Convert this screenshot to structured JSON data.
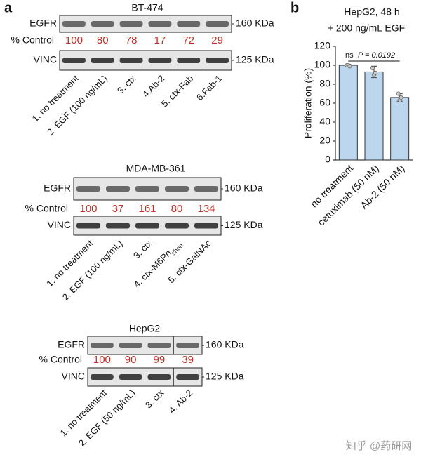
{
  "panel_a": {
    "letter": "a",
    "blots": [
      {
        "title": "BT-474",
        "top_row": "EGFR",
        "pct_row": "% Control",
        "bottom_row": "VINC",
        "markers": [
          "160 KDa",
          "125 KDa"
        ],
        "percent_control": [
          100,
          80,
          78,
          17,
          72,
          29
        ],
        "lanes": [
          "1. no treatment",
          "2. EGF (100 ng/mL)",
          "3. ctx",
          "4.Ab-2",
          "5. ctx-Fab",
          "6.Fab-1"
        ]
      },
      {
        "title": "MDA-MB-361",
        "top_row": "EGFR",
        "pct_row": "% Control",
        "bottom_row": "VINC",
        "markers": [
          "160 KDa",
          "125 KDa"
        ],
        "percent_control": [
          100,
          37,
          161,
          80,
          134
        ],
        "lanes": [
          "1. no treatment",
          "2. EGF (100 ng/mL)",
          "3. ctx",
          {
            "text": "4. ctx-M6Pn",
            "subscript": "short"
          },
          "5. ctx-GalNAc"
        ]
      },
      {
        "title": "HepG2",
        "top_row": "EGFR",
        "pct_row": "% Control",
        "bottom_row": "VINC",
        "markers": [
          "160 KDa",
          "125 KDa"
        ],
        "percent_control": [
          100,
          90,
          99,
          39
        ],
        "lanes": [
          "1. no treatment",
          "2. EGF (50 ng/mL)",
          "3. ctx",
          "4. Ab-2"
        ]
      }
    ]
  },
  "panel_b": {
    "letter": "b"
  },
  "chart_data": {
    "type": "bar",
    "title": [
      "HepG2, 48 h",
      "+ 200 ng/mL EGF"
    ],
    "y_label": "Proliferation (%)",
    "categories": [
      "no treatment",
      "cetuximab (50 nM)",
      "Ab-2 (50 nM)"
    ],
    "values": [
      100,
      93,
      66
    ],
    "errors": [
      1,
      6,
      4
    ],
    "points": [
      [
        100,
        100,
        99
      ],
      [
        97,
        90,
        92
      ],
      [
        70,
        63,
        66
      ]
    ],
    "color": "#bcd6ee",
    "ylim": [
      0,
      120
    ],
    "yticks": [
      0,
      20,
      40,
      60,
      80,
      100,
      120
    ],
    "annotations": [
      "ns",
      "P = 0.0192"
    ]
  },
  "watermark": "知乎 @药研网"
}
